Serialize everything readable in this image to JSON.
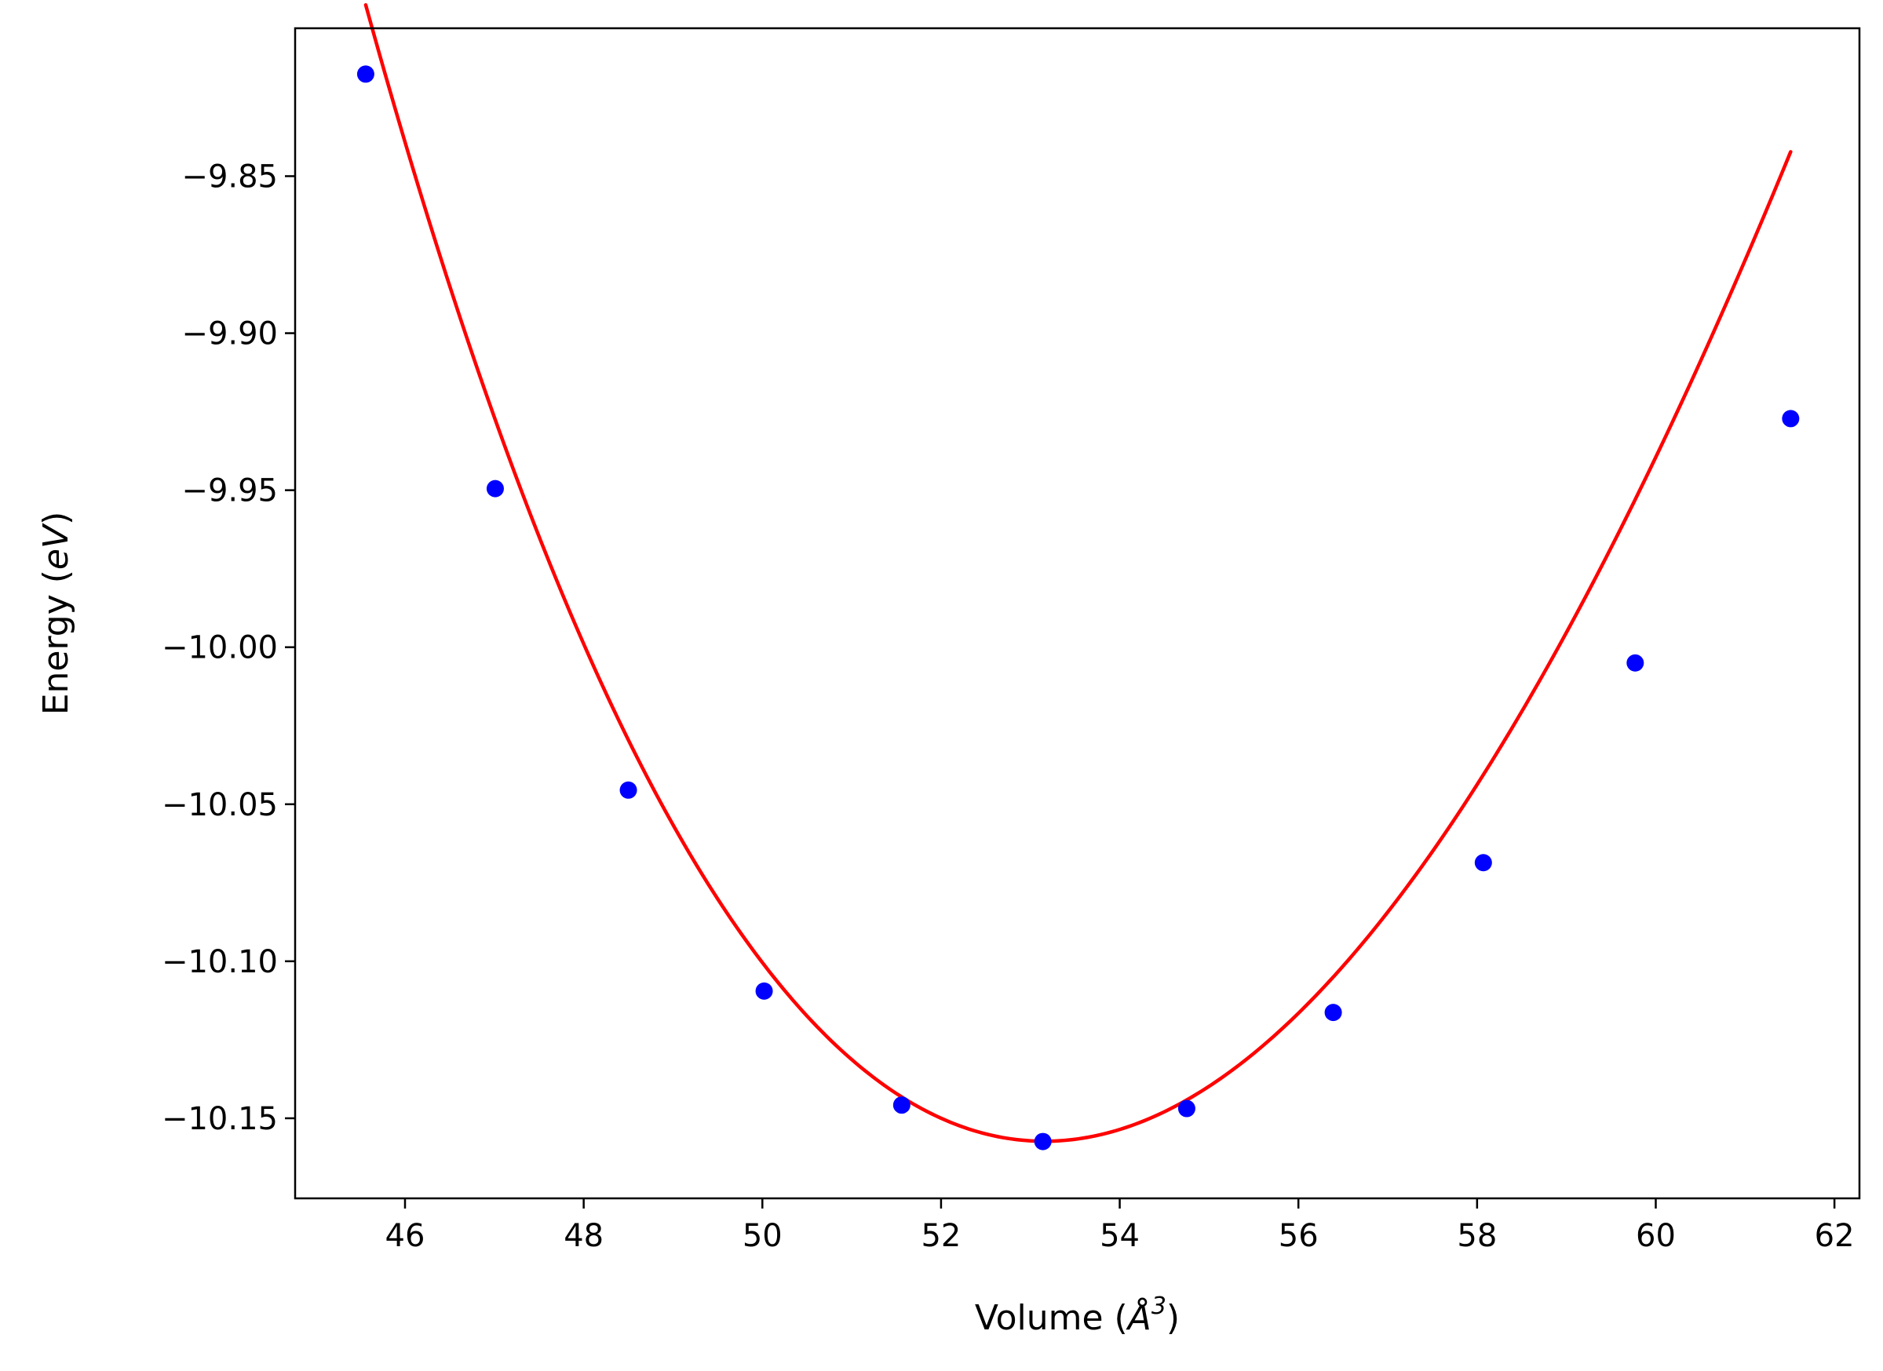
{
  "chart_data": {
    "type": "line",
    "title": "",
    "xlabel": {
      "prefix": "Volume (",
      "symbol": "Å",
      "sup": "3",
      "suffix": ")"
    },
    "ylabel": {
      "prefix": "Energy (",
      "unit": "eV",
      "suffix": ")"
    },
    "xlim": [
      44.77,
      62.28
    ],
    "ylim": [
      -10.1755,
      -9.8029
    ],
    "xticks": [
      46,
      48,
      50,
      52,
      54,
      56,
      58,
      60,
      62
    ],
    "xtick_labels": [
      "46",
      "48",
      "50",
      "52",
      "54",
      "56",
      "58",
      "60",
      "62"
    ],
    "yticks": [
      -9.85,
      -9.9,
      -9.95,
      -10.0,
      -10.05,
      -10.1,
      -10.15
    ],
    "ytick_labels": [
      "−9.85",
      "−9.90",
      "−9.95",
      "−10.00",
      "−10.05",
      "−10.10",
      "−10.15"
    ],
    "grid": false,
    "legend": null,
    "series": [
      {
        "kind": "scatter",
        "color": "#0000ff",
        "x": [
          45.56,
          47.01,
          48.5,
          50.02,
          51.56,
          53.14,
          54.75,
          56.39,
          58.07,
          59.77,
          61.51
        ],
        "y": [
          -9.8175,
          -9.9495,
          -10.0455,
          -10.1095,
          -10.1458,
          -10.1574,
          -10.1469,
          -10.1163,
          -10.0686,
          -10.005,
          -9.9272
        ]
      },
      {
        "kind": "fit",
        "color": "#ff0000",
        "model": "quartic",
        "x_range": [
          45.56,
          61.51
        ],
        "coefficients_about_53": [
          -10.15718,
          -0.00168,
          0.005398,
          -0.000112,
          1.4e-06
        ]
      }
    ]
  }
}
